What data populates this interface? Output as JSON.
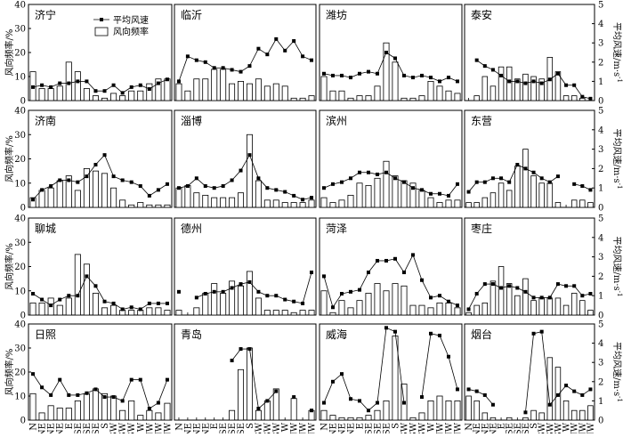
{
  "y_left_label": "风向频率/%",
  "y_right_label": "平均风速/m·s",
  "y_right_label_sup": "-1",
  "legend": {
    "speed": "平均风速",
    "freq": "风向频率"
  },
  "x_categories": [
    "N",
    "NNE",
    "NE",
    "ENE",
    "E",
    "ESE",
    "SE",
    "SSE",
    "S",
    "SSW",
    "SW",
    "WSW",
    "W",
    "WNW",
    "NW",
    "NNW"
  ],
  "chart_data": [
    {
      "type": "bar+line",
      "title": "济宁",
      "ylim": [
        0,
        40
      ],
      "y2lim": [
        0,
        5
      ],
      "freq": [
        12,
        5,
        5,
        6,
        16,
        12,
        5,
        2,
        1,
        3,
        2,
        4,
        4,
        7,
        9,
        9
      ],
      "speed": [
        0.7,
        0.8,
        0.7,
        0.9,
        0.9,
        1.0,
        1.0,
        0.5,
        0.5,
        0.8,
        0.4,
        0.7,
        0.8,
        0.6,
        0.9,
        1.1
      ]
    },
    {
      "type": "bar+line",
      "title": "临沂",
      "ylim": [
        0,
        40
      ],
      "y2lim": [
        0,
        5
      ],
      "freq": [
        7,
        4,
        9,
        9,
        13,
        13,
        7,
        8,
        7,
        9,
        6,
        7,
        6,
        1,
        1,
        2
      ],
      "speed": [
        1.0,
        2.3,
        2.1,
        2.0,
        1.7,
        1.7,
        1.6,
        1.5,
        1.8,
        2.7,
        2.4,
        3.2,
        2.6,
        3.1,
        2.3,
        2.1
      ]
    },
    {
      "type": "bar+line",
      "title": "潍坊",
      "ylim": [
        0,
        40
      ],
      "y2lim": [
        0,
        5
      ],
      "freq": [
        10,
        4,
        4,
        1,
        2,
        2,
        6,
        24,
        16,
        1,
        1,
        2,
        8,
        6,
        4,
        3
      ],
      "speed": [
        1.4,
        1.3,
        1.3,
        1.2,
        1.4,
        1.5,
        1.4,
        2.5,
        2.2,
        1.3,
        1.2,
        1.3,
        1.2,
        1.0,
        1.2,
        1.0
      ]
    },
    {
      "type": "bar+line",
      "title": "泰安",
      "ylim": [
        0,
        40
      ],
      "y2lim": [
        0,
        5
      ],
      "freq": [
        0,
        2,
        10,
        6,
        14,
        14,
        9,
        11,
        10,
        9,
        18,
        12,
        2,
        2,
        1,
        0
      ],
      "speed": [
        null,
        2.1,
        1.8,
        1.6,
        1.3,
        1.0,
        1.0,
        0.9,
        1.0,
        0.9,
        1.1,
        1.4,
        0.8,
        0.8,
        0.2,
        0.1
      ]
    },
    {
      "type": "bar+line",
      "title": "济南",
      "ylim": [
        0,
        40
      ],
      "y2lim": [
        0,
        5
      ],
      "freq": [
        4,
        7,
        8,
        11,
        13,
        7,
        16,
        15,
        14,
        8,
        3,
        1,
        2,
        1,
        1,
        1
      ],
      "speed": [
        0.4,
        0.9,
        1.1,
        1.4,
        1.4,
        1.3,
        1.6,
        2.2,
        2.7,
        1.6,
        1.4,
        1.3,
        1.1,
        0.6,
        0.9,
        1.2
      ]
    },
    {
      "type": "bar+line",
      "title": "淄博",
      "ylim": [
        0,
        40
      ],
      "y2lim": [
        0,
        5
      ],
      "freq": [
        8,
        9,
        6,
        5,
        4,
        4,
        4,
        6,
        30,
        11,
        3,
        3,
        2,
        2,
        2,
        3
      ],
      "speed": [
        1.0,
        1.1,
        1.5,
        1.1,
        1.0,
        1.1,
        1.4,
        1.9,
        2.7,
        1.5,
        1.0,
        0.9,
        0.8,
        0.6,
        0.4,
        0.5
      ]
    },
    {
      "type": "bar+line",
      "title": "滨州",
      "ylim": [
        0,
        40
      ],
      "y2lim": [
        0,
        5
      ],
      "freq": [
        4,
        2,
        3,
        5,
        10,
        9,
        12,
        19,
        13,
        11,
        10,
        7,
        4,
        2,
        3,
        3
      ],
      "speed": [
        1.0,
        1.2,
        1.3,
        1.5,
        1.8,
        1.8,
        1.7,
        1.8,
        1.5,
        1.3,
        1.0,
        0.9,
        0.7,
        0.7,
        0.6,
        1.2
      ]
    },
    {
      "type": "bar+line",
      "title": "东营",
      "ylim": [
        0,
        40
      ],
      "y2lim": [
        0,
        5
      ],
      "freq": [
        2,
        2,
        4,
        6,
        10,
        7,
        17,
        24,
        13,
        10,
        10,
        2,
        0,
        3,
        3,
        2
      ],
      "speed": [
        0.8,
        1.3,
        1.3,
        1.5,
        1.5,
        1.3,
        2.2,
        2.0,
        1.8,
        1.5,
        1.3,
        1.6,
        null,
        1.2,
        1.1,
        0.9
      ]
    },
    {
      "type": "bar+line",
      "title": "聊城",
      "ylim": [
        0,
        40
      ],
      "y2lim": [
        0,
        5
      ],
      "freq": [
        5,
        5,
        7,
        4,
        7,
        25,
        21,
        9,
        3,
        4,
        2,
        2,
        2,
        3,
        3,
        2
      ],
      "speed": [
        1.1,
        0.8,
        0.5,
        0.8,
        1.0,
        1.0,
        2.0,
        1.5,
        0.7,
        0.6,
        0.3,
        0.4,
        0.3,
        0.6,
        0.6,
        0.6
      ]
    },
    {
      "type": "bar+line",
      "title": "德州",
      "ylim": [
        0,
        40
      ],
      "y2lim": [
        0,
        5
      ],
      "freq": [
        2,
        0,
        3,
        9,
        13,
        9,
        14,
        12,
        18,
        7,
        2,
        2,
        2,
        1,
        2,
        2
      ],
      "speed": [
        1.2,
        null,
        0.9,
        1.1,
        1.2,
        1.2,
        1.4,
        1.6,
        1.7,
        1.2,
        1.0,
        1.0,
        0.8,
        0.7,
        0.6,
        2.2
      ]
    },
    {
      "type": "bar+line",
      "title": "菏泽",
      "ylim": [
        0,
        40
      ],
      "y2lim": [
        0,
        5
      ],
      "freq": [
        10,
        1,
        6,
        3,
        6,
        9,
        13,
        10,
        13,
        12,
        4,
        4,
        3,
        5,
        5,
        3
      ],
      "speed": [
        2.0,
        0.4,
        1.1,
        1.2,
        1.3,
        2.2,
        2.8,
        2.8,
        2.9,
        2.2,
        3.1,
        1.8,
        0.9,
        1.0,
        0.7,
        0.5
      ]
    },
    {
      "type": "bar+line",
      "title": "枣庄",
      "ylim": [
        0,
        40
      ],
      "y2lim": [
        0,
        5
      ],
      "freq": [
        1,
        4,
        5,
        14,
        20,
        13,
        8,
        15,
        6,
        7,
        7,
        7,
        4,
        9,
        6,
        2
      ],
      "speed": [
        0.3,
        1.1,
        1.6,
        1.6,
        1.4,
        1.5,
        1.4,
        1.2,
        0.9,
        0.9,
        0.9,
        1.6,
        1.5,
        1.5,
        1.0,
        1.1
      ]
    },
    {
      "type": "bar+line",
      "title": "日照",
      "ylim": [
        0,
        40
      ],
      "y2lim": [
        0,
        5
      ],
      "freq": [
        11,
        3,
        6,
        5,
        5,
        8,
        11,
        13,
        11,
        10,
        4,
        8,
        2,
        4,
        3,
        7
      ],
      "speed": [
        2.4,
        1.7,
        1.3,
        2.1,
        1.3,
        1.3,
        1.4,
        1.6,
        1.2,
        1.2,
        1.0,
        2.1,
        2.1,
        0.6,
        0.9,
        2.1
      ]
    },
    {
      "type": "bar+line",
      "title": "青岛",
      "ylim": [
        0,
        40
      ],
      "y2lim": [
        0,
        5
      ],
      "freq": [
        0,
        0,
        0,
        0,
        0,
        0,
        4,
        21,
        30,
        4,
        8,
        13,
        0,
        9,
        0,
        4
      ],
      "speed": [
        null,
        null,
        null,
        null,
        null,
        null,
        3.1,
        3.7,
        3.7,
        0.6,
        1.0,
        1.5,
        null,
        1.2,
        null,
        0.5
      ]
    },
    {
      "type": "bar+line",
      "title": "威海",
      "ylim": [
        0,
        40
      ],
      "y2lim": [
        0,
        5
      ],
      "freq": [
        4,
        2,
        1,
        1,
        1,
        2,
        4,
        8,
        35,
        15,
        1,
        3,
        8,
        10,
        8,
        8
      ],
      "speed": [
        0.9,
        2.0,
        2.4,
        1.1,
        1.0,
        0.5,
        0.9,
        4.8,
        4.6,
        0.9,
        null,
        1.2,
        4.5,
        4.4,
        3.3,
        1.6
      ]
    },
    {
      "type": "bar+line",
      "title": "烟台",
      "ylim": [
        0,
        40
      ],
      "y2lim": [
        0,
        5
      ],
      "freq": [
        10,
        8,
        3,
        1,
        0,
        1,
        0,
        1,
        4,
        3,
        26,
        22,
        8,
        4,
        4,
        6
      ],
      "speed": [
        1.6,
        1.5,
        1.3,
        0.8,
        null,
        null,
        null,
        0.4,
        4.5,
        4.6,
        0.8,
        1.3,
        1.8,
        1.5,
        1.3,
        1.6
      ]
    }
  ]
}
